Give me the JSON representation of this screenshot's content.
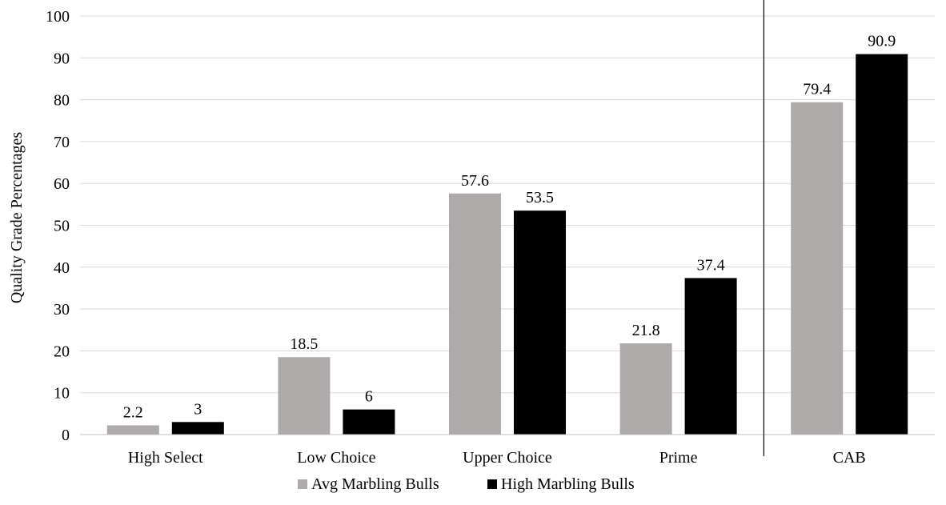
{
  "chart_data": {
    "type": "bar",
    "title": "",
    "xlabel": "",
    "ylabel": "Quality Grade Percentages",
    "ylim": [
      0,
      100
    ],
    "yticks": [
      0,
      10,
      20,
      30,
      40,
      50,
      60,
      70,
      80,
      90,
      100
    ],
    "grid": true,
    "legend_position": "bottom",
    "categories": [
      "High Select",
      "Low Choice",
      "Upper Choice",
      "Prime",
      "CAB"
    ],
    "separator_before_category": "CAB",
    "series": [
      {
        "name": "Avg Marbling Bulls",
        "color": "#aeaaaa",
        "values": [
          2.2,
          18.5,
          57.6,
          21.8,
          79.4
        ]
      },
      {
        "name": "High Marbling Bulls",
        "color": "#000000",
        "values": [
          3,
          6,
          53.5,
          37.4,
          90.9
        ]
      }
    ]
  }
}
